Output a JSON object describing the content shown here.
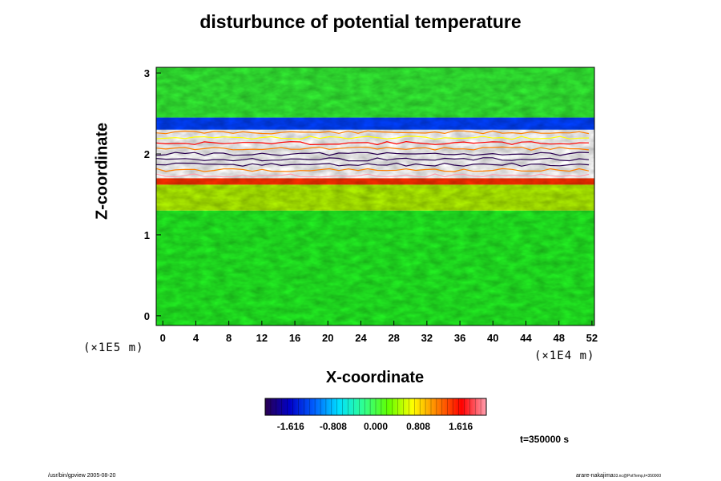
{
  "chart_data": {
    "type": "heatmap",
    "title": "disturbunce of potential temperature",
    "xlabel": "X-coordinate",
    "ylabel": "Z-coordinate",
    "x_unit": "(×1E4 m)",
    "z_unit": "(×1E5 m)",
    "x_ticks": [
      "0",
      "4",
      "8",
      "12",
      "16",
      "20",
      "24",
      "28",
      "32",
      "36",
      "40",
      "44",
      "48",
      "52"
    ],
    "z_ticks": [
      "0",
      "1",
      "2",
      "3"
    ],
    "xlim": [
      -0.8,
      52.3
    ],
    "zlim": [
      -0.12,
      3.07
    ],
    "colorbar": {
      "range": [
        -2.1,
        2.1
      ],
      "tick_labels": [
        "-1.616",
        "-0.808",
        "0.000",
        "0.808",
        "1.616"
      ],
      "tick_values": [
        -1.616,
        -0.808,
        0.0,
        0.808,
        1.616
      ],
      "colors": [
        "#2a0050",
        "#0000c8",
        "#0060ff",
        "#00e0ff",
        "#30ff90",
        "#60ff00",
        "#ffff00",
        "#ff8000",
        "#ff0000",
        "#ffa0b0"
      ]
    },
    "field_bands": [
      {
        "z": [
          -0.12,
          1.3
        ],
        "level": "near-zero",
        "color": "#22ee22"
      },
      {
        "z": [
          1.3,
          1.62
        ],
        "level": "positive",
        "color": "#b0f000"
      },
      {
        "z": [
          1.62,
          1.7
        ],
        "level": "strong positive",
        "color": "#ff3000"
      },
      {
        "z": [
          1.7,
          2.3
        ],
        "level": "saturated / undefined",
        "color": "#ffffff"
      },
      {
        "z": [
          2.3,
          2.45
        ],
        "level": "negative",
        "color": "#0040ff"
      },
      {
        "z": [
          2.45,
          3.07
        ],
        "level": "near-zero",
        "color": "#33ee33"
      }
    ]
  },
  "time_label": "t=350000 s",
  "footer": {
    "left": "/usr/bin/gpview 2005-08-20",
    "right_main": "arare-nakajima",
    "right_small": "03.nc@PotTemp,t=350000"
  }
}
